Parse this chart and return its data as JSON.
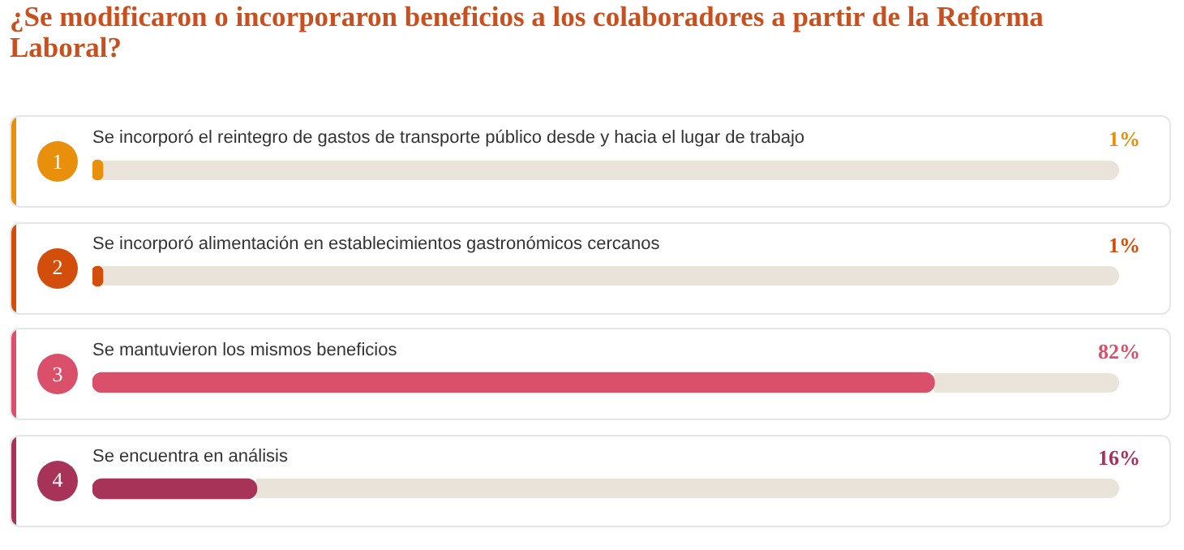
{
  "chart_data": {
    "type": "bar",
    "orientation": "horizontal",
    "title": "¿Se modificaron o incorporaron beneficios a los colaboradores a partir de la Reforma Laboral?",
    "categories": [
      "Se incorporó el reintegro de gastos de transporte público desde y hacia el lugar de trabajo",
      "Se incorporó alimentación en establecimientos gastronómicos cercanos",
      "Se mantuvieron los mismos beneficios",
      "Se encuentra en análisis"
    ],
    "values": [
      1,
      1,
      82,
      16
    ],
    "colors": [
      "#e8900c",
      "#d24e0a",
      "#da4f69",
      "#a83358"
    ],
    "value_labels": [
      "1%",
      "1%",
      "82%",
      "16%"
    ],
    "annotations": [
      "1",
      "2",
      "3",
      "4"
    ],
    "xlim": [
      0,
      100
    ],
    "tick_labels": "y",
    "legend": false
  }
}
